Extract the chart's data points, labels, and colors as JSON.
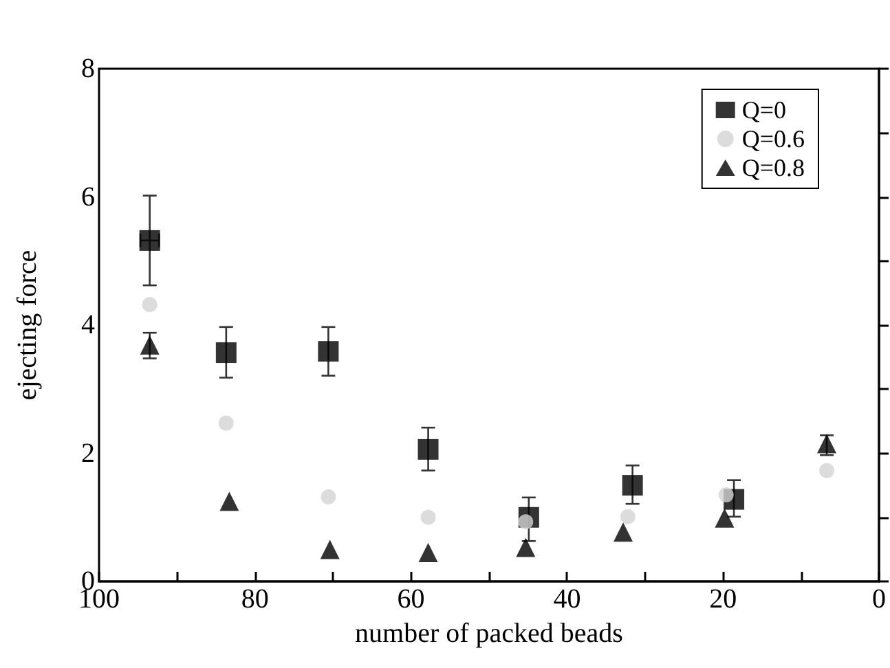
{
  "chart_data": {
    "type": "scatter",
    "xlabel": "number of packed beads",
    "ylabel": "ejecting force",
    "xlim": [
      100,
      0
    ],
    "ylim": [
      0,
      8
    ],
    "xticks": [
      100,
      {
        "value": 90,
        "label": null
      },
      80,
      {
        "value": 70,
        "label": null
      },
      60,
      {
        "value": 50,
        "label": null
      },
      40,
      {
        "value": 30,
        "label": null
      },
      20,
      {
        "value": 10,
        "label": null
      },
      0
    ],
    "yticks": [
      0,
      {
        "value": 1,
        "label": null
      },
      2,
      {
        "value": 3,
        "label": null
      },
      4,
      {
        "value": 5,
        "label": null
      },
      6,
      {
        "value": 7,
        "label": null
      },
      8
    ],
    "grid": false,
    "legend": "top right",
    "series": [
      {
        "name": "Q=0",
        "color": "#000000",
        "marker": "square",
        "x": [
          93.5,
          83.7,
          70.6,
          57.8,
          44.9,
          31.6,
          18.6
        ],
        "values": [
          5.32,
          3.57,
          3.59,
          2.06,
          1.0,
          1.5,
          1.28
        ],
        "errors": [
          [
            4.62,
            6.02
          ],
          [
            3.18,
            3.97
          ],
          [
            3.21,
            3.97
          ],
          [
            1.73,
            2.4
          ],
          [
            0.63,
            1.31
          ],
          [
            1.21,
            1.81
          ],
          [
            1.01,
            1.58
          ]
        ],
        "xerrors": [
          1.2,
          null,
          null,
          null,
          null,
          null,
          null
        ]
      },
      {
        "name": "Q=0.6",
        "color": "#d3d3d3",
        "marker": "circle",
        "x": [
          93.5,
          83.7,
          70.6,
          57.8,
          45.3,
          32.2,
          19.6,
          6.7
        ],
        "values": [
          4.32,
          2.47,
          1.32,
          1.0,
          0.93,
          1.01,
          1.35,
          1.73
        ]
      },
      {
        "name": "Q=0.8",
        "color": "#000000",
        "marker": "triangle",
        "x": [
          93.5,
          83.3,
          70.4,
          57.8,
          45.3,
          32.8,
          19.8,
          6.7
        ],
        "values": [
          3.69,
          1.25,
          0.5,
          0.45,
          0.53,
          0.77,
          0.99,
          2.15
        ],
        "errors": [
          [
            3.48,
            3.88
          ],
          null,
          null,
          null,
          null,
          null,
          null,
          [
            1.97,
            2.28
          ]
        ]
      }
    ]
  }
}
